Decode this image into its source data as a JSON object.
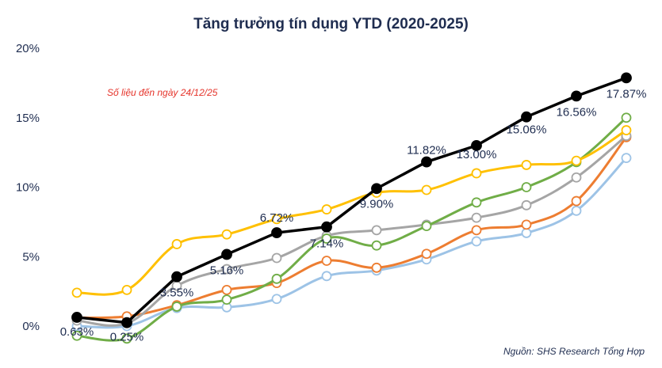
{
  "chart_data": {
    "type": "line",
    "title": "Tăng trưởng tín dụng YTD (2020-2025)",
    "annotation": "Số liệu đến ngày 24/12/25",
    "source": "Nguồn: SHS Research Tổng Hợp",
    "ylim": [
      0,
      20
    ],
    "yticks": [
      "0%",
      "5%",
      "10%",
      "15%",
      "20%"
    ],
    "ytick_values": [
      0,
      5,
      10,
      15,
      20
    ],
    "x": [
      1,
      2,
      3,
      4,
      5,
      6,
      7,
      8,
      9,
      10,
      11,
      12
    ],
    "grid": false,
    "legend": "none",
    "series": [
      {
        "color": "#9dc3e6",
        "values": [
          0.0,
          0.0,
          1.3,
          1.35,
          1.95,
          3.6,
          4.0,
          4.8,
          6.1,
          6.7,
          8.3,
          12.1
        ]
      },
      {
        "color": "#ed7d31",
        "values": [
          0.6,
          0.7,
          1.5,
          2.6,
          3.1,
          4.7,
          4.2,
          5.2,
          6.9,
          7.3,
          9.0,
          13.6
        ]
      },
      {
        "color": "#a5a5a5",
        "values": [
          0.4,
          0.2,
          2.9,
          4.1,
          4.9,
          6.5,
          6.9,
          7.3,
          7.8,
          8.7,
          10.7,
          13.7
        ]
      },
      {
        "color": "#70ad47",
        "values": [
          -0.7,
          -0.9,
          1.4,
          1.9,
          3.4,
          6.3,
          5.8,
          7.2,
          8.9,
          10.0,
          11.8,
          15.0
        ]
      },
      {
        "color": "#ffc000",
        "values": [
          2.4,
          2.6,
          5.9,
          6.6,
          7.7,
          8.4,
          9.6,
          9.8,
          11.0,
          11.6,
          11.9,
          14.1
        ]
      },
      {
        "color": "#000000",
        "values": [
          0.63,
          0.25,
          3.55,
          5.16,
          6.72,
          7.14,
          9.9,
          11.82,
          13.0,
          15.06,
          16.56,
          17.87
        ],
        "data_labels": [
          "0.63%",
          "0.25%",
          "3.55%",
          "5.16%",
          "6.72%",
          "7.14%",
          "9.90%",
          "11.82%",
          "13.00%",
          "15.06%",
          "16.56%",
          "17.87%"
        ]
      }
    ]
  }
}
